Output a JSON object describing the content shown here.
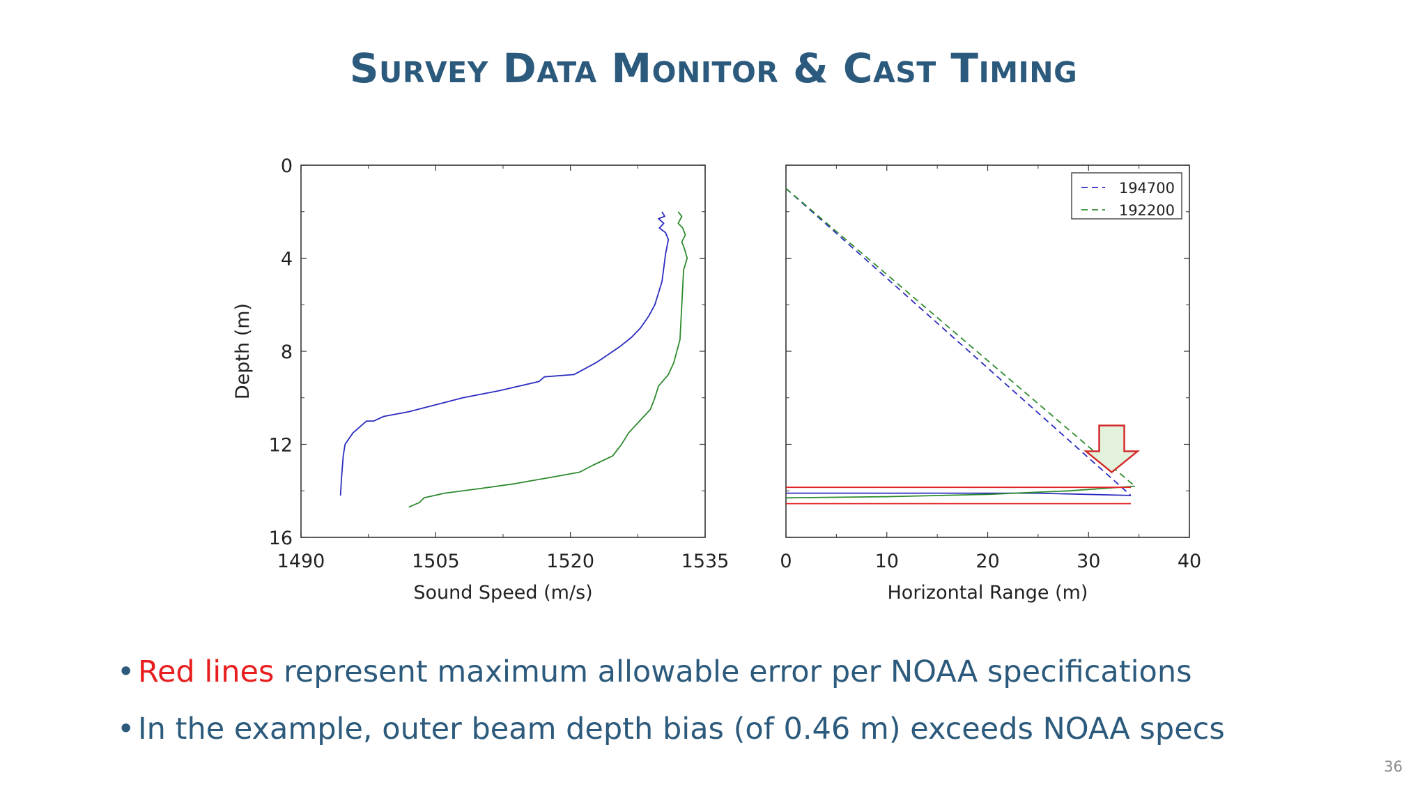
{
  "slide": {
    "title": "Survey Data Monitor & Cast Timing",
    "page_number": "36",
    "bullets": [
      {
        "highlight": "Red lines",
        "text": " represent maximum allowable error per NOAA specifications"
      },
      {
        "highlight": "",
        "text": "In the example, outer beam depth bias (of 0.46 m) exceeds NOAA specs"
      }
    ]
  },
  "colors": {
    "title": "#2c5a7c",
    "highlight": "#e81d1d",
    "cast_194700": "#2b2bbf",
    "cast_192200": "#2c8a2c",
    "limit": "#e32626",
    "arrow_fill": "#e3f2dc",
    "arrow_stroke": "#d42a2a"
  },
  "chart_data": [
    {
      "type": "line",
      "xlabel": "Sound Speed (m/s)",
      "ylabel": "Depth (m)",
      "xlim": [
        1490,
        1535
      ],
      "ylim": [
        16,
        0
      ],
      "y_inverted": true,
      "xticks": [
        1490,
        1505,
        1520,
        1535
      ],
      "yticks": [
        0,
        4,
        8,
        12,
        16
      ],
      "series": [
        {
          "name": "194700",
          "color": "#2b2bbf",
          "points": [
            [
              1530.2,
              2.0
            ],
            [
              1530.5,
              2.2
            ],
            [
              1529.8,
              2.3
            ],
            [
              1530.4,
              2.5
            ],
            [
              1529.9,
              2.7
            ],
            [
              1530.6,
              2.9
            ],
            [
              1530.9,
              3.2
            ],
            [
              1530.6,
              3.8
            ],
            [
              1530.2,
              5.0
            ],
            [
              1529.4,
              6.0
            ],
            [
              1528.7,
              6.5
            ],
            [
              1527.8,
              7.0
            ],
            [
              1526.8,
              7.4
            ],
            [
              1525.5,
              7.8
            ],
            [
              1523.6,
              8.3
            ],
            [
              1522.8,
              8.5
            ],
            [
              1520.4,
              9.0
            ],
            [
              1517.1,
              9.1
            ],
            [
              1516.5,
              9.3
            ],
            [
              1512.0,
              9.7
            ],
            [
              1508.0,
              10.0
            ],
            [
              1505.0,
              10.3
            ],
            [
              1502.0,
              10.6
            ],
            [
              1499.2,
              10.8
            ],
            [
              1498.1,
              11.0
            ],
            [
              1497.3,
              11.0
            ],
            [
              1495.8,
              11.5
            ],
            [
              1494.9,
              12.0
            ],
            [
              1494.7,
              12.5
            ],
            [
              1494.5,
              13.5
            ],
            [
              1494.4,
              14.2
            ]
          ]
        },
        {
          "name": "192200",
          "color": "#2c8a2c",
          "points": [
            [
              1532.0,
              2.0
            ],
            [
              1532.4,
              2.2
            ],
            [
              1532.0,
              2.5
            ],
            [
              1532.5,
              2.7
            ],
            [
              1532.8,
              3.0
            ],
            [
              1532.4,
              3.3
            ],
            [
              1532.7,
              3.6
            ],
            [
              1533.0,
              4.0
            ],
            [
              1532.6,
              4.5
            ],
            [
              1532.4,
              6.0
            ],
            [
              1532.2,
              7.5
            ],
            [
              1531.5,
              8.5
            ],
            [
              1530.9,
              9.0
            ],
            [
              1529.8,
              9.5
            ],
            [
              1529.4,
              10.0
            ],
            [
              1528.9,
              10.5
            ],
            [
              1527.7,
              11.0
            ],
            [
              1526.5,
              11.5
            ],
            [
              1525.7,
              12.0
            ],
            [
              1524.7,
              12.5
            ],
            [
              1522.5,
              12.9
            ],
            [
              1521.0,
              13.2
            ],
            [
              1518.1,
              13.4
            ],
            [
              1513.7,
              13.7
            ],
            [
              1510.0,
              13.9
            ],
            [
              1506.0,
              14.1
            ],
            [
              1503.7,
              14.3
            ],
            [
              1503.2,
              14.5
            ],
            [
              1502.0,
              14.7
            ]
          ]
        }
      ]
    },
    {
      "type": "line",
      "xlabel": "Horizontal Range (m)",
      "ylabel": "",
      "xlim": [
        0,
        40
      ],
      "ylim": [
        16,
        0
      ],
      "y_inverted": true,
      "xticks": [
        0,
        10,
        20,
        30,
        40
      ],
      "yticks": [
        0,
        4,
        8,
        12,
        16
      ],
      "legend_position": "top-right",
      "legend": [
        "194700",
        "192200"
      ],
      "series": [
        {
          "name": "194700",
          "color": "#2b2bbf",
          "style": "dashed",
          "points": [
            [
              0,
              1.0
            ],
            [
              34.2,
              14.2
            ]
          ]
        },
        {
          "name": "192200",
          "color": "#2c8a2c",
          "style": "dashed",
          "points": [
            [
              0,
              1.0
            ],
            [
              34.6,
              13.8
            ]
          ]
        },
        {
          "name": "194700 bottom",
          "color": "#2b2bbf",
          "style": "solid",
          "points": [
            [
              0,
              14.1
            ],
            [
              15,
              14.1
            ],
            [
              25,
              14.1
            ],
            [
              34.2,
              14.2
            ]
          ]
        },
        {
          "name": "192200 bottom",
          "color": "#2c8a2c",
          "style": "solid",
          "points": [
            [
              0,
              14.3
            ],
            [
              10,
              14.25
            ],
            [
              20,
              14.15
            ],
            [
              28,
              14.0
            ],
            [
              34.6,
              13.8
            ]
          ]
        },
        {
          "name": "upper limit",
          "color": "#e32626",
          "style": "solid",
          "points": [
            [
              0,
              13.85
            ],
            [
              34.2,
              13.85
            ]
          ]
        },
        {
          "name": "lower limit",
          "color": "#e32626",
          "style": "solid",
          "points": [
            [
              0,
              14.55
            ],
            [
              34.2,
              14.55
            ]
          ]
        }
      ],
      "annotations": [
        {
          "type": "arrow-down",
          "x": 32.3,
          "y_tip": 13.2
        }
      ]
    }
  ]
}
